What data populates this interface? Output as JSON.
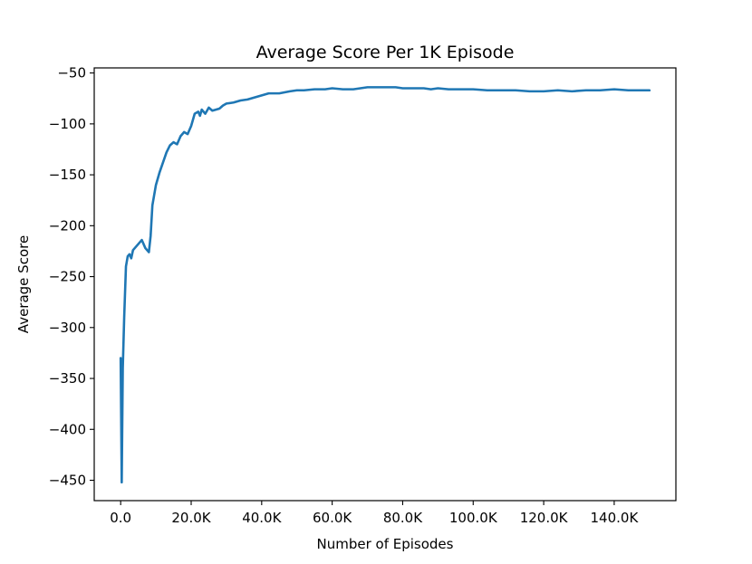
{
  "chart_data": {
    "type": "line",
    "title": "Average Score Per 1K Episode",
    "xlabel": "Number of Episodes",
    "ylabel": "Average Score",
    "xlim": [
      -7500,
      157500
    ],
    "ylim": [
      -470,
      -45
    ],
    "grid": false,
    "x_ticks": [
      0,
      20000,
      40000,
      60000,
      80000,
      100000,
      120000,
      140000
    ],
    "x_tick_labels": [
      "0.0",
      "20.0K",
      "40.0K",
      "60.0K",
      "80.0K",
      "100.0K",
      "120.0K",
      "140.0K"
    ],
    "y_ticks": [
      -450,
      -400,
      -350,
      -300,
      -250,
      -200,
      -150,
      -100,
      -50
    ],
    "y_tick_labels": [
      "−450",
      "−400",
      "−350",
      "−300",
      "−250",
      "−200",
      "−150",
      "−100",
      "−50"
    ],
    "series": [
      {
        "color": "#1f77b4",
        "x": [
          0,
          300,
          600,
          1000,
          1500,
          2000,
          2500,
          3000,
          3500,
          4000,
          5000,
          6000,
          7000,
          8000,
          8500,
          9000,
          9500,
          10000,
          11000,
          12000,
          13000,
          14000,
          15000,
          16000,
          17000,
          18000,
          19000,
          20000,
          21000,
          22000,
          22500,
          23000,
          24000,
          25000,
          26000,
          27000,
          28000,
          29000,
          30000,
          32000,
          34000,
          36000,
          38000,
          40000,
          42000,
          45000,
          48000,
          50000,
          52000,
          55000,
          58000,
          60000,
          63000,
          66000,
          68000,
          70000,
          73000,
          76000,
          78000,
          80000,
          83000,
          86000,
          88000,
          90000,
          93000,
          96000,
          100000,
          104000,
          108000,
          112000,
          116000,
          120000,
          124000,
          128000,
          132000,
          136000,
          140000,
          144000,
          148000,
          150000
        ],
        "y": [
          -330,
          -452,
          -340,
          -290,
          -240,
          -230,
          -228,
          -232,
          -224,
          -222,
          -218,
          -214,
          -222,
          -226,
          -210,
          -180,
          -170,
          -160,
          -148,
          -138,
          -128,
          -121,
          -118,
          -120,
          -112,
          -108,
          -110,
          -102,
          -90,
          -88,
          -92,
          -86,
          -90,
          -84,
          -87,
          -86,
          -85,
          -82,
          -80,
          -79,
          -77,
          -76,
          -74,
          -72,
          -70,
          -70,
          -68,
          -67,
          -67,
          -66,
          -66,
          -65,
          -66,
          -66,
          -65,
          -64,
          -64,
          -64,
          -64,
          -65,
          -65,
          -65,
          -66,
          -65,
          -66,
          -66,
          -66,
          -67,
          -67,
          -67,
          -68,
          -68,
          -67,
          -68,
          -67,
          -67,
          -66,
          -67,
          -67,
          -67
        ]
      }
    ]
  }
}
